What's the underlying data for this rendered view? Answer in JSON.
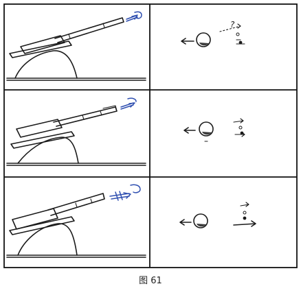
{
  "figure": {
    "caption": "图 61",
    "rows": [
      {
        "id": "row-1",
        "question_mark": "?"
      },
      {
        "id": "row-2",
        "question_mark": ""
      },
      {
        "id": "row-3",
        "question_mark": ""
      }
    ]
  },
  "colors": {
    "ink": "#1a1a1a",
    "projectile": "#2f4fb0",
    "background": "#ffffff"
  }
}
